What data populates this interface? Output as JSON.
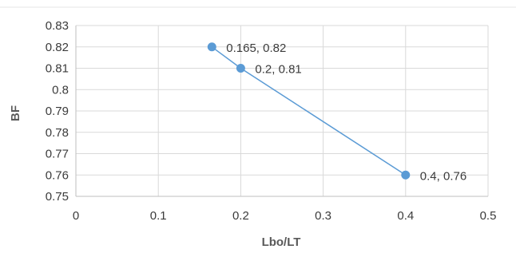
{
  "chart_data": {
    "type": "scatter",
    "title": "",
    "xlabel": "Lbo/LT",
    "ylabel": "BF",
    "xlim": [
      0,
      0.5
    ],
    "ylim": [
      0.75,
      0.83
    ],
    "x_ticks": [
      "0",
      "0.1",
      "0.2",
      "0.3",
      "0.4",
      "0.5"
    ],
    "y_ticks": [
      "0.75",
      "0.76",
      "0.77",
      "0.78",
      "0.79",
      "0.8",
      "0.81",
      "0.82",
      "0.83"
    ],
    "grid": true,
    "legend": "none",
    "series": [
      {
        "x": [
          0.165,
          0.2,
          0.4
        ],
        "y": [
          0.82,
          0.81,
          0.76
        ],
        "labels": [
          "0.165, 0.82",
          "0.2, 0.81",
          "0.4, 0.76"
        ],
        "color": "#5b9bd5",
        "line": true,
        "markers": true
      }
    ]
  }
}
